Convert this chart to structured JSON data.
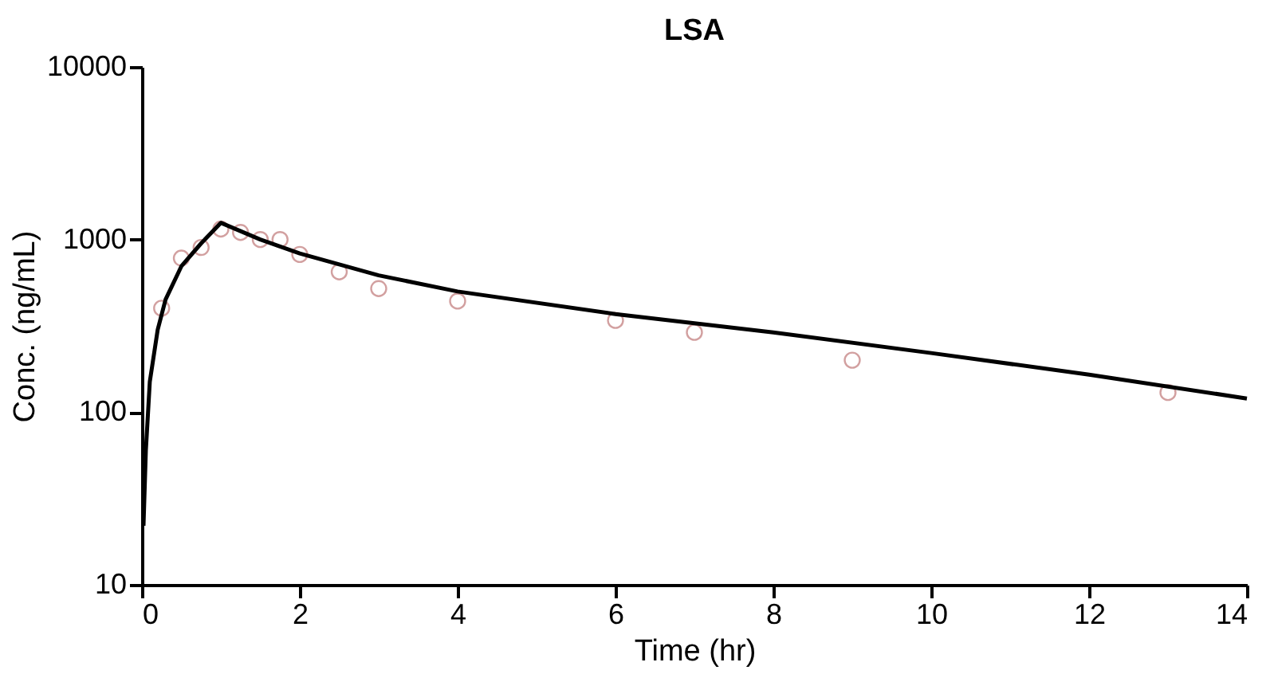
{
  "chart_data": {
    "type": "scatter",
    "title": "LSA",
    "xlabel": "Time (hr)",
    "ylabel": "Conc. (ng/mL)",
    "log": "y",
    "xlim": [
      0,
      14
    ],
    "xticks": [
      0,
      2,
      4,
      6,
      8,
      10,
      12,
      14
    ],
    "ylim": [
      10,
      10000
    ],
    "yticks": [
      10,
      100,
      1000,
      10000
    ],
    "grid": false,
    "series": [
      {
        "color": "#c07878",
        "marker": "circle",
        "x": [
          0.25,
          0.5,
          0.75,
          1,
          1.25,
          1.5,
          1.75,
          2,
          2.5,
          3,
          4,
          6,
          7,
          9,
          13
        ],
        "values": [
          400,
          780,
          900,
          1150,
          1100,
          1000,
          1000,
          820,
          650,
          520,
          440,
          340,
          290,
          200,
          130
        ]
      },
      {
        "type": "line",
        "color": "#000000",
        "line_style": "solid",
        "marker": "none",
        "x": [
          0.02,
          0.05,
          0.1,
          0.2,
          0.3,
          0.5,
          0.75,
          1,
          1.5,
          2,
          3,
          4,
          6,
          8,
          10,
          12,
          14
        ],
        "values": [
          22,
          60,
          150,
          300,
          450,
          700,
          950,
          1250,
          1000,
          830,
          620,
          500,
          370,
          290,
          220,
          165,
          120
        ]
      }
    ]
  }
}
